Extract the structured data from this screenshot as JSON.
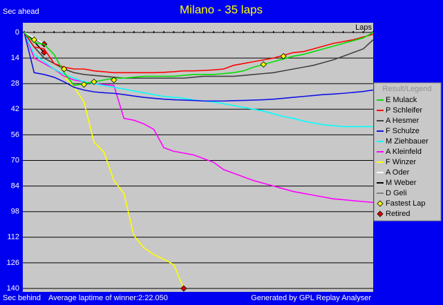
{
  "chart_data": {
    "type": "line",
    "title": "Milano - 35 laps",
    "y_label_top": "Sec ahead",
    "y_label_bottom": "Sec behind",
    "x_label": "Laps",
    "footer_left": "Average laptime of winner:2:22.050",
    "footer_right": "Generated by GPL Replay Analyser",
    "legend_title": "Result/Legend",
    "x": [
      0,
      1,
      2,
      3,
      4,
      5,
      6,
      7,
      8,
      9,
      10,
      11,
      12,
      13,
      14,
      15,
      16,
      17,
      18,
      19,
      20,
      21,
      22,
      23,
      24,
      25,
      26,
      27,
      28,
      29,
      30,
      31,
      32,
      33,
      34,
      35
    ],
    "xlim": [
      0,
      35
    ],
    "xticks": [
      0,
      1,
      2,
      3,
      4,
      5,
      6,
      7,
      8,
      9,
      10,
      11,
      12,
      13,
      14,
      15,
      16,
      17,
      18,
      19,
      20,
      21,
      22,
      23,
      24,
      25,
      26,
      27,
      28,
      29,
      30,
      31,
      32,
      33,
      34,
      35
    ],
    "ylim": [
      0,
      140
    ],
    "yticks": [
      0,
      14,
      28,
      42,
      56,
      70,
      84,
      98,
      112,
      126,
      140
    ],
    "y_inverted": true,
    "grid": true,
    "series": [
      {
        "name": "E Mulack",
        "color": "#00e000",
        "values": [
          0,
          5.5,
          6.5,
          12,
          22,
          29,
          28,
          27,
          26,
          25,
          25,
          24.5,
          24,
          24,
          24,
          24,
          23.5,
          23,
          23,
          23,
          22.5,
          22,
          21,
          19,
          17.5,
          16,
          14.5,
          13,
          12,
          10.5,
          9,
          7.5,
          6,
          4.5,
          3,
          0
        ]
      },
      {
        "name": "P Schleifer",
        "color": "#ff0000",
        "values": [
          0,
          8,
          9,
          17,
          19,
          20,
          20,
          21,
          21.5,
          22,
          22,
          22,
          22,
          22,
          21.8,
          21.5,
          21,
          21,
          20.8,
          20.5,
          20,
          18,
          17,
          16,
          15,
          14,
          12.5,
          11,
          10.5,
          9,
          7.5,
          6,
          5,
          4,
          2.5,
          1
        ]
      },
      {
        "name": "A Hesmer",
        "color": "#404040",
        "values": [
          0,
          8,
          14,
          17,
          20,
          22,
          23,
          23.5,
          24,
          24.5,
          25,
          25,
          25,
          25,
          25,
          25,
          25,
          24.5,
          24,
          24,
          24,
          24,
          23.5,
          23,
          22.5,
          22,
          21,
          20,
          19,
          18,
          16.5,
          15,
          13,
          11,
          9,
          4
        ]
      },
      {
        "name": "F Schulze",
        "color": "#1010e8",
        "values": [
          0,
          22,
          23,
          24.5,
          27,
          30,
          31.5,
          32.5,
          33,
          33.3,
          34,
          34.8,
          35.5,
          36,
          36.5,
          36.8,
          37,
          37.2,
          37.5,
          37.5,
          37.5,
          37.3,
          37.2,
          37,
          36.8,
          36.5,
          36,
          35.5,
          35,
          34.5,
          34,
          33.7,
          33.3,
          32.8,
          32.3,
          31.5
        ]
      },
      {
        "name": "M Ziehbauer",
        "color": "#00ffff",
        "values": [
          0,
          12,
          16,
          20,
          23,
          25,
          27,
          28,
          29,
          30,
          31,
          32,
          33,
          34,
          35,
          35.5,
          36,
          37,
          37.5,
          38,
          39,
          40,
          41,
          42,
          43,
          44.5,
          46,
          47,
          48.5,
          49.5,
          50.5,
          51,
          51.5,
          51.5,
          51.5,
          51.5
        ]
      },
      {
        "name": "A Kleinfeld",
        "color": "#ff00ff",
        "values": [
          0,
          14,
          17,
          20,
          24,
          26,
          27,
          28,
          28.5,
          29,
          47,
          48,
          50,
          53,
          63,
          65,
          66,
          67,
          69,
          71,
          75,
          77,
          79,
          81,
          82.5,
          84,
          85.5,
          87,
          88,
          89,
          90,
          91,
          91.5,
          92,
          92.5,
          93
        ]
      },
      {
        "name": "F Winzer",
        "color": "#ffff00",
        "values": [
          0,
          14,
          17,
          20,
          24,
          30,
          38,
          60,
          65.5,
          81,
          88,
          111,
          117.7,
          121.5,
          124,
          127,
          140,
          null,
          null,
          null,
          null,
          null,
          null,
          null,
          null,
          null,
          null,
          null,
          null,
          null,
          null,
          null,
          null,
          null,
          null,
          null
        ]
      },
      {
        "name": "A Oder",
        "color": "#ffffff",
        "values": [
          0,
          3,
          6.4,
          null,
          null,
          null,
          null,
          null,
          null,
          null,
          null,
          null,
          null,
          null,
          null,
          null,
          null,
          null,
          null,
          null,
          null,
          null,
          null,
          null,
          null,
          null,
          null,
          null,
          null,
          null,
          null,
          null,
          null,
          null,
          null,
          null
        ]
      },
      {
        "name": "M Weber",
        "color": "#000000",
        "values": [
          0,
          5,
          11,
          null,
          null,
          null,
          null,
          null,
          null,
          null,
          null,
          null,
          null,
          null,
          null,
          null,
          null,
          null,
          null,
          null,
          null,
          null,
          null,
          null,
          null,
          null,
          null,
          null,
          null,
          null,
          null,
          null,
          null,
          null,
          null,
          null
        ]
      },
      {
        "name": "D Geli",
        "color": "#808080",
        "values": [
          0,
          4,
          6.4,
          null,
          null,
          null,
          null,
          null,
          null,
          null,
          null,
          null,
          null,
          null,
          null,
          null,
          null,
          null,
          null,
          null,
          null,
          null,
          null,
          null,
          null,
          null,
          null,
          null,
          null,
          null,
          null,
          null,
          null,
          null,
          null,
          null
        ]
      }
    ],
    "fastest_laps": {
      "name": "Fastest Lap",
      "color": "#ffff00",
      "x": [
        1,
        4,
        6,
        7,
        9,
        24,
        26
      ],
      "values": [
        4,
        20,
        28.5,
        27,
        26,
        17.5,
        13
      ]
    },
    "retired": {
      "name": "Retired",
      "color": "#e00000"
    }
  }
}
